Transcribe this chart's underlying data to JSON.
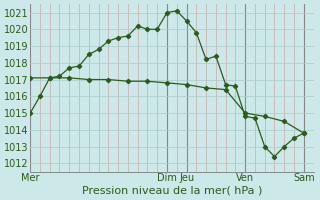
{
  "title": "",
  "xlabel": "Pression niveau de la mer( hPa )",
  "ylabel": "",
  "bg_color": "#cce8e8",
  "plot_bg_color": "#cce8e8",
  "grid_major_color": "#aacccc",
  "grid_vline_color": "#888888",
  "grid_minor_v_color": "#cc9999",
  "line_color": "#2d5a1e",
  "ylim": [
    1011.5,
    1021.5
  ],
  "yticks": [
    1012,
    1013,
    1014,
    1015,
    1016,
    1017,
    1018,
    1019,
    1020,
    1021
  ],
  "day_labels": [
    "Mer",
    "Dim",
    "Jeu",
    "Ven",
    "Sam"
  ],
  "day_positions": [
    0,
    14,
    16,
    22,
    28
  ],
  "xlim": [
    0,
    29
  ],
  "minor_xticks_step": 1,
  "line1_x": [
    0,
    1,
    2,
    3,
    4,
    5,
    6,
    7,
    8,
    9,
    10,
    11,
    12,
    13,
    14,
    15,
    16,
    17,
    18,
    19,
    20,
    21,
    22,
    23,
    24,
    25,
    26,
    27,
    28
  ],
  "line1_y": [
    1015.0,
    1016.0,
    1017.1,
    1017.2,
    1017.7,
    1017.8,
    1018.5,
    1018.8,
    1019.3,
    1019.5,
    1019.6,
    1020.2,
    1020.0,
    1020.0,
    1021.0,
    1021.1,
    1020.5,
    1019.8,
    1018.2,
    1018.4,
    1016.7,
    1016.6,
    1014.8,
    1014.7,
    1013.0,
    1012.4,
    1013.0,
    1013.5,
    1013.8
  ],
  "line2_x": [
    0,
    2,
    4,
    6,
    8,
    10,
    12,
    14,
    16,
    18,
    20,
    22,
    24,
    26,
    28
  ],
  "line2_y": [
    1017.1,
    1017.1,
    1017.1,
    1017.0,
    1017.0,
    1016.9,
    1016.9,
    1016.8,
    1016.7,
    1016.5,
    1016.4,
    1015.0,
    1014.8,
    1014.5,
    1013.8
  ],
  "xlabel_fontsize": 8,
  "tick_fontsize": 7,
  "label_color": "#2d5a1e"
}
